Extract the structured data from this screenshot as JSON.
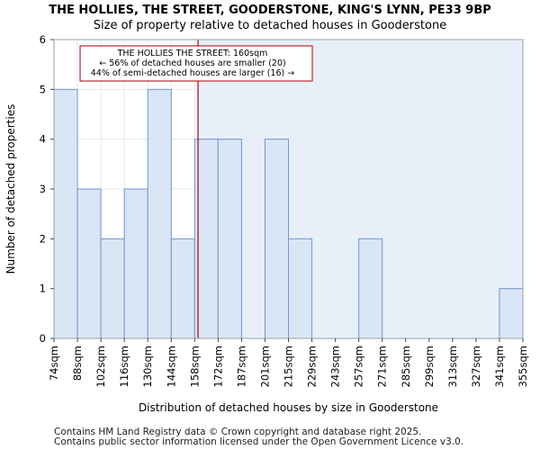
{
  "header": {
    "title": "THE HOLLIES, THE STREET, GOODERSTONE, KING'S LYNN, PE33 9BP",
    "subtitle": "Size of property relative to detached houses in Gooderstone"
  },
  "footer": {
    "line1": "Contains HM Land Registry data © Crown copyright and database right 2025.",
    "line2": "Contains public sector information licensed under the Open Government Licence v3.0."
  },
  "chart_data": {
    "type": "bar",
    "title": "THE HOLLIES, THE STREET, GOODERSTONE, KING'S LYNN, PE33 9BP",
    "subtitle": "Size of property relative to detached houses in Gooderstone",
    "xlabel": "Distribution of detached houses by size in Gooderstone",
    "ylabel": "Number of detached properties",
    "bin_edges": [
      74,
      88,
      102,
      116,
      130,
      144,
      158,
      172,
      187,
      201,
      215,
      229,
      243,
      257,
      271,
      285,
      299,
      313,
      327,
      341,
      355
    ],
    "tick_labels": [
      "74sqm",
      "88sqm",
      "102sqm",
      "116sqm",
      "130sqm",
      "144sqm",
      "158sqm",
      "172sqm",
      "187sqm",
      "201sqm",
      "215sqm",
      "229sqm",
      "243sqm",
      "257sqm",
      "271sqm",
      "285sqm",
      "299sqm",
      "313sqm",
      "327sqm",
      "341sqm",
      "355sqm"
    ],
    "values": [
      5,
      3,
      2,
      3,
      5,
      2,
      4,
      4,
      0,
      4,
      2,
      0,
      0,
      2,
      0,
      0,
      0,
      0,
      0,
      1
    ],
    "ylim": [
      0,
      6
    ],
    "yticks": [
      0,
      1,
      2,
      3,
      4,
      5,
      6
    ],
    "grid": true,
    "marker": {
      "value": 160,
      "color": "#aa0000",
      "label_lines": [
        "THE HOLLIES THE STREET: 160sqm",
        "← 56% of detached houses are smaller (20)",
        "44% of semi-detached houses are larger (16) →"
      ]
    },
    "colors": {
      "bar_fill": "#dae6f6",
      "bar_stroke": "#6f96cf",
      "shade_fill": "#e8eff9",
      "grid": "#e3e8f1"
    }
  }
}
